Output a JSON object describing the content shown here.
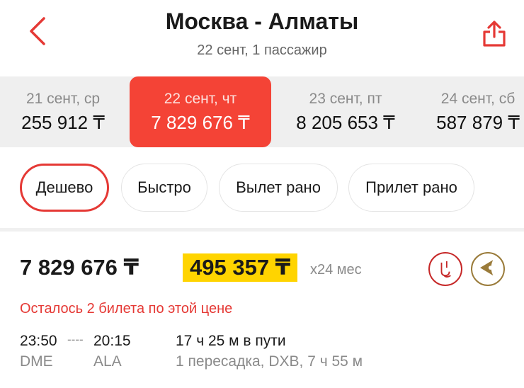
{
  "header": {
    "title": "Москва - Алматы",
    "subtitle": "22 сент, 1 пассажир",
    "back_icon": "chevron-left-icon",
    "share_icon": "share-icon"
  },
  "dates": [
    {
      "date": "21 сент, ср",
      "price": "255 912 ₸",
      "selected": false
    },
    {
      "date": "22 сент, чт",
      "price": "7 829 676 ₸",
      "selected": true
    },
    {
      "date": "23 сент, пт",
      "price": "8 205 653 ₸",
      "selected": false
    },
    {
      "date": "24 сент, сб",
      "price": "587 879 ₸",
      "selected": false
    }
  ],
  "filters": [
    {
      "label": "Дешево",
      "selected": true
    },
    {
      "label": "Быстро"
    },
    {
      "label": "Вылет рано"
    },
    {
      "label": "Прилет рано"
    }
  ],
  "offer": {
    "price": "7 829 676 ₸",
    "installment": "495 357 ₸",
    "installment_term": "x24 мес",
    "airlines": [
      "emirates-logo",
      "air-astana-logo"
    ],
    "seats_left": "Осталось 2 билета по этой цене",
    "dep_time": "23:50",
    "dash": "----",
    "arr_time": "20:15",
    "dep_code": "DME",
    "arr_code": "ALA",
    "duration": "17 ч 25 м в пути",
    "stops": "1 пересадка, DXB, 7 ч 55 м"
  },
  "colors": {
    "accent": "#f44336",
    "highlight": "#ffd400"
  }
}
